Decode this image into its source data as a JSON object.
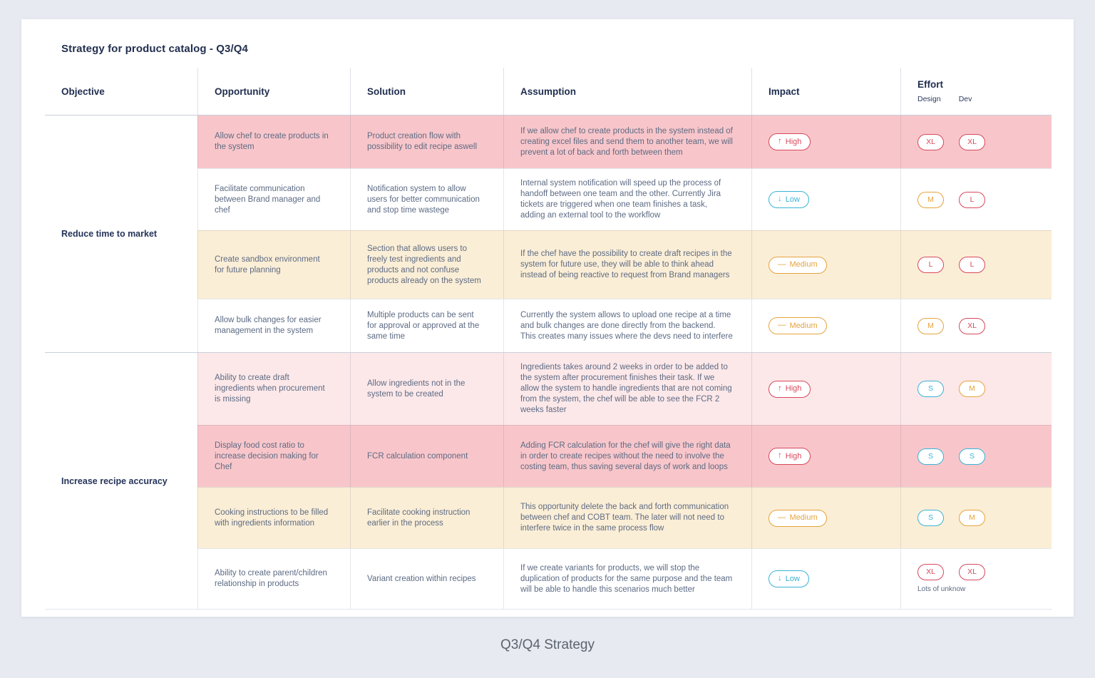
{
  "page": {
    "title": "Strategy for product catalog - Q3/Q4",
    "footer": "Q3/Q4 Strategy"
  },
  "colors": {
    "red": "#d8485c",
    "orange": "#e6a33e",
    "cyan": "#39b3d5",
    "row-pink-strong": "#f8c6ca",
    "row-pink-light": "#fce8e9",
    "row-cream": "#fbeed6",
    "page-bg": "#e7eaf0"
  },
  "table": {
    "headers": {
      "objective": "Objective",
      "opportunity": "Opportunity",
      "solution": "Solution",
      "assumption": "Assumption",
      "impact": "Impact",
      "effort": "Effort",
      "effort_design": "Design",
      "effort_dev": "Dev"
    },
    "groups": [
      {
        "objective": "Reduce time to market",
        "rows": [
          {
            "bg": "pink-strong",
            "opportunity": "Allow chef to create products in the system",
            "solution": "Product creation flow with possibility to edit recipe aswell",
            "assumption": "If we allow chef to create products in the system instead of creating excel files and send them to another team, we will prevent a lot of back and forth between them",
            "impact": {
              "icon": "↑",
              "label": "High",
              "color": "red"
            },
            "effort_design": {
              "label": "XL",
              "color": "red"
            },
            "effort_dev": {
              "label": "XL",
              "color": "red"
            }
          },
          {
            "bg": "white",
            "opportunity": "Facilitate communication between Brand manager and chef",
            "solution": "Notification system to allow users for better communication and stop time wastege",
            "assumption": "Internal system notification will speed up the process of handoff between one team and the other. Currently Jira tickets are triggered when one team finishes a task, adding an external tool to the workflow",
            "impact": {
              "icon": "↓",
              "label": "Low",
              "color": "cyan"
            },
            "effort_design": {
              "label": "M",
              "color": "orange"
            },
            "effort_dev": {
              "label": "L",
              "color": "red"
            }
          },
          {
            "bg": "cream",
            "opportunity": "Create sandbox environment for future planning",
            "solution": "Section that allows users to freely test ingredients and products and not confuse products already on the system",
            "assumption": "If the chef have the possibility to create draft recipes in the system for future use, they will be able to think ahead instead of being reactive to request from Brand managers",
            "impact": {
              "icon": "—",
              "label": "Medium",
              "color": "orange"
            },
            "effort_design": {
              "label": "L",
              "color": "red"
            },
            "effort_dev": {
              "label": "L",
              "color": "red"
            }
          },
          {
            "bg": "white",
            "opportunity": "Allow bulk changes for easier management in the system",
            "solution": "Multiple products can be sent for approval or approved at the same time",
            "assumption": "Currently the system allows to upload one recipe at a time and bulk changes are done directly from the backend. This creates many issues where the devs need to interfere",
            "impact": {
              "icon": "—",
              "label": "Medium",
              "color": "orange"
            },
            "effort_design": {
              "label": "M",
              "color": "orange"
            },
            "effort_dev": {
              "label": "XL",
              "color": "red"
            }
          }
        ]
      },
      {
        "objective": "Increase recipe accuracy",
        "rows": [
          {
            "bg": "pink-light",
            "opportunity": "Ability to create draft ingredients when procurement is missing",
            "solution": "Allow ingredients not in the system to be created",
            "assumption": "Ingredients takes around 2 weeks in order to be added to the system after procurement finishes their task. If we allow the system to handle ingredients that are not coming from the system, the chef will be able to see the FCR 2 weeks faster",
            "impact": {
              "icon": "↑",
              "label": "High",
              "color": "red"
            },
            "effort_design": {
              "label": "S",
              "color": "cyan"
            },
            "effort_dev": {
              "label": "M",
              "color": "orange"
            }
          },
          {
            "bg": "pink-strong",
            "opportunity": "Display food cost ratio to increase decision making for Chef",
            "solution": "FCR calculation component",
            "assumption": "Adding FCR calculation for the chef will give the right data in order to create recipes without the need to involve the costing team, thus saving several days of work and loops",
            "impact": {
              "icon": "↑",
              "label": "High",
              "color": "red"
            },
            "effort_design": {
              "label": "S",
              "color": "cyan"
            },
            "effort_dev": {
              "label": "S",
              "color": "cyan"
            }
          },
          {
            "bg": "cream",
            "opportunity": "Cooking instructions to be filled with ingredients information",
            "solution": "Facilitate cooking instruction earlier in the process",
            "assumption": "This opportunity delete the back and forth communication between chef and COBT team. The later will not need to interfere twice in the same process flow",
            "impact": {
              "icon": "—",
              "label": "Medium",
              "color": "orange"
            },
            "effort_design": {
              "label": "S",
              "color": "cyan"
            },
            "effort_dev": {
              "label": "M",
              "color": "orange"
            }
          },
          {
            "bg": "white",
            "opportunity": "Ability to create parent/children relationship in products",
            "solution": "Variant creation within recipes",
            "assumption": "If we create variants for products, we will stop the duplication of products for the same purpose and the team will be able to handle this scenarios much better",
            "impact": {
              "icon": "↓",
              "label": "Low",
              "color": "cyan"
            },
            "effort_design": {
              "label": "XL",
              "color": "red"
            },
            "effort_dev": {
              "label": "XL",
              "color": "red"
            },
            "note": "Lots of unknow"
          }
        ]
      }
    ]
  }
}
